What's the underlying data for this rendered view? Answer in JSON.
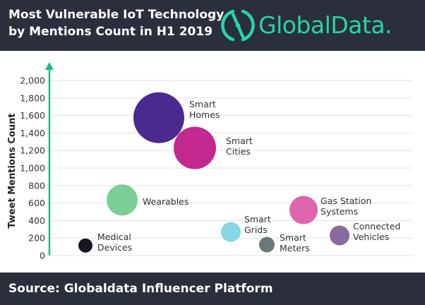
{
  "header": {
    "title_line1": "Most Vulnerable IoT Technology",
    "title_line2": "by Mentions Count in H1 2019",
    "brand": "GlobalData.",
    "brand_icon": "globaldata-logo-icon"
  },
  "footer": {
    "source": "Source: Globaldata Influencer Platform"
  },
  "colors": {
    "header_bg": "#2b2e3b",
    "brand_accent": "#27d4a8",
    "axis_arrow": "#1db98a",
    "gridline": "#e3e3e3"
  },
  "chart_data": {
    "type": "scatter",
    "ylabel": "Tweet Mentions Count",
    "xlabel": "",
    "ylim": [
      0,
      2000
    ],
    "yticks": [
      0,
      200,
      400,
      600,
      800,
      1000,
      1200,
      1400,
      1600,
      1800,
      2000
    ],
    "ytick_labels": [
      "0",
      "200",
      "400",
      "600",
      "800",
      "1,000",
      "1,200",
      "1,400",
      "1,600",
      "1,800",
      "2,000"
    ],
    "grid": true,
    "x_axis": "unlabeled categorical positions",
    "points": [
      {
        "label": "Medical Devices",
        "label_lines": [
          "Medical",
          "Devices"
        ],
        "y": 115,
        "color": "#1a1420"
      },
      {
        "label": "Wearables",
        "label_lines": [
          "Wearables"
        ],
        "y": 635,
        "color": "#7ccf96"
      },
      {
        "label": "Smart Homes",
        "label_lines": [
          "Smart",
          "Homes"
        ],
        "y": 1575,
        "color": "#4a2a8f"
      },
      {
        "label": "Smart Cities",
        "label_lines": [
          "Smart",
          "Cities"
        ],
        "y": 1230,
        "color": "#c2288e"
      },
      {
        "label": "Smart Grids",
        "label_lines": [
          "Smart",
          "Grids"
        ],
        "y": 270,
        "color": "#87d6e4"
      },
      {
        "label": "Smart Meters",
        "label_lines": [
          "Smart",
          "Meters"
        ],
        "y": 125,
        "color": "#6b7778"
      },
      {
        "label": "Gas Station Systems",
        "label_lines": [
          "Gas Station",
          "Systems"
        ],
        "y": 520,
        "color": "#de64ad"
      },
      {
        "label": "Connected Vehicles",
        "label_lines": [
          "Connected",
          "Vehicles"
        ],
        "y": 230,
        "color": "#8b6a9f"
      }
    ]
  }
}
